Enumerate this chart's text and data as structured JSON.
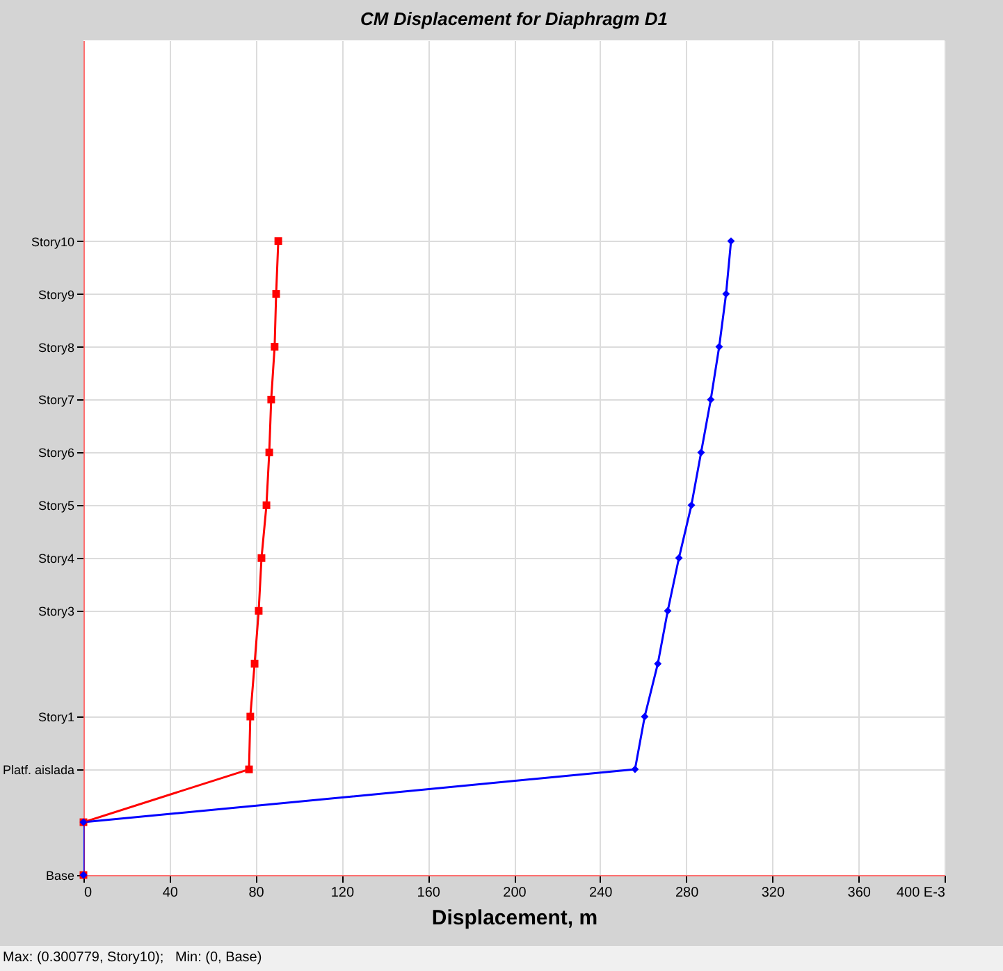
{
  "chart_data": {
    "type": "line",
    "orientation": "horizontal",
    "title": "CM Displacement for Diaphragm D1",
    "xlabel": "Displacement, m",
    "annotations": [
      "Max: (0.300779, Story10);   Min: (0, Base)"
    ],
    "categories": [
      "Story10",
      "Story9",
      "Story8",
      "Story7",
      "Story6",
      "Story5",
      "Story4",
      "Story3",
      null,
      "Story1",
      "Platf. aislada",
      null,
      "Base"
    ],
    "series": [
      {
        "color": "#ff0000",
        "marker": "square",
        "values": [
          90.5,
          89.5,
          88.8,
          87.2,
          86.3,
          85,
          82.7,
          81.4,
          79.5,
          77.5,
          76.9,
          0,
          0
        ]
      },
      {
        "color": "#0000ff",
        "marker": "diamond",
        "values": [
          300.8,
          298.5,
          295.3,
          291.4,
          286.9,
          282.4,
          276.6,
          271.4,
          266.8,
          260.7,
          256.2,
          0,
          0
        ]
      }
    ],
    "xlim": [
      0,
      400
    ],
    "xticks": [
      0,
      40,
      80,
      120,
      160,
      200,
      240,
      280,
      320,
      360,
      {
        "value": 400,
        "label": "400 E-3"
      }
    ],
    "grid": true,
    "line_style": "solid"
  }
}
